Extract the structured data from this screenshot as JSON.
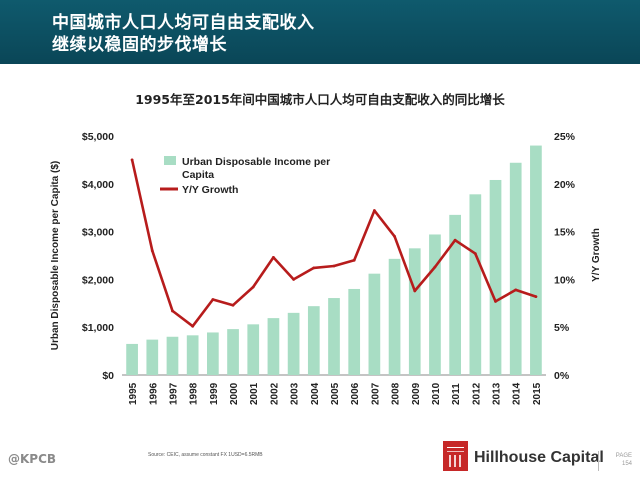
{
  "header": {
    "title_line1": "中国城市人口人均可自由支配收入",
    "title_line2": "继续以稳固的步伐增长"
  },
  "chart_data": {
    "type": "bar+line",
    "title": "1995年至2015年间中国城市人口人均可自由支配收入的同比增长",
    "categories": [
      "1995",
      "1996",
      "1997",
      "1998",
      "1999",
      "2000",
      "2001",
      "2002",
      "2003",
      "2004",
      "2005",
      "2006",
      "2007",
      "2008",
      "2009",
      "2010",
      "2011",
      "2012",
      "2013",
      "2014",
      "2015"
    ],
    "series": [
      {
        "name": "Urban Disposable Income per Capita",
        "type": "bar",
        "axis": "left",
        "color": "#a8ddc4",
        "values": [
          650,
          740,
          800,
          830,
          890,
          960,
          1060,
          1190,
          1300,
          1440,
          1610,
          1800,
          2120,
          2430,
          2650,
          2940,
          3350,
          3780,
          4080,
          4440,
          4800
        ]
      },
      {
        "name": "Y/Y Growth",
        "type": "line",
        "axis": "right",
        "color": "#b71c1c",
        "values": [
          22.5,
          13.0,
          6.7,
          5.1,
          7.9,
          7.3,
          9.2,
          12.3,
          10.0,
          11.2,
          11.4,
          12.0,
          17.2,
          14.5,
          8.8,
          11.3,
          14.1,
          12.7,
          7.7,
          8.9,
          8.2
        ]
      }
    ],
    "ylabel_left": "Urban Disposable Income per Capita ($)",
    "ylabel_right": "Y/Y Growth",
    "ylim_left": [
      0,
      5000
    ],
    "ylim_right": [
      0,
      25
    ],
    "yticks_left": [
      "$0",
      "$1,000",
      "$2,000",
      "$3,000",
      "$4,000",
      "$5,000"
    ],
    "yticks_right": [
      "0%",
      "5%",
      "10%",
      "15%",
      "20%",
      "25%"
    ],
    "legend": [
      "Urban Disposable Income per Capita",
      "Y/Y Growth"
    ],
    "legend_position": "top-left",
    "grid": false
  },
  "footer": {
    "source": "Source: CEIC, assume constant FX 1USD=6.5RMB",
    "brand": "Hillhouse Capital",
    "page_label": "PAGE",
    "page_number": "154",
    "watermark": "@KPCB"
  },
  "colors": {
    "header_bg": "#0f5a6d",
    "bar": "#a8ddc4",
    "line": "#b71c1c",
    "logo": "#c62828"
  }
}
